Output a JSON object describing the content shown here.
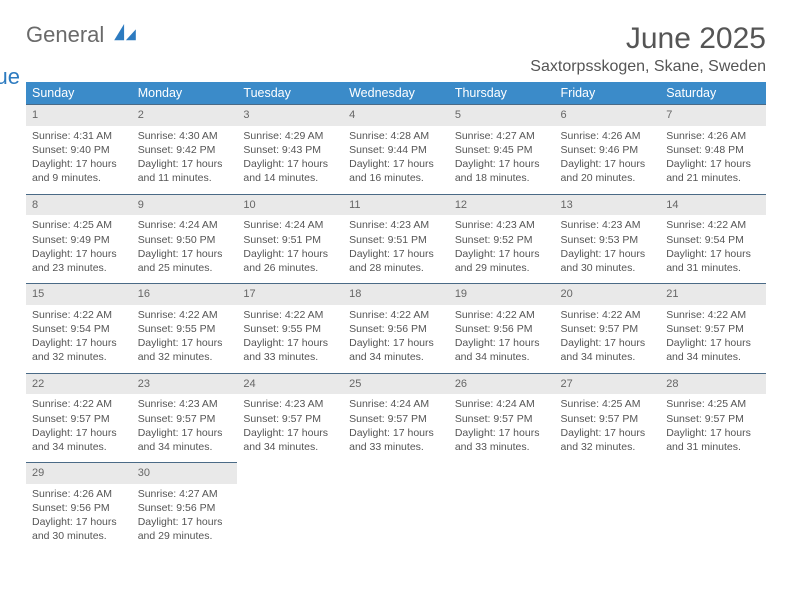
{
  "logo": {
    "text1": "General",
    "text2": "Blue"
  },
  "title": "June 2025",
  "location": "Saxtorpsskogen, Skane, Sweden",
  "colors": {
    "header_bg": "#3b8bc9",
    "header_text": "#ffffff",
    "daynum_bg": "#e9e9e9",
    "daynum_border": "#4a6a86",
    "body_text": "#555555",
    "logo_gray": "#6a6a6a",
    "logo_blue": "#2d7bc0",
    "page_bg": "#ffffff"
  },
  "fonts": {
    "body_size_pt": 10.5,
    "title_size_pt": 30,
    "location_size_pt": 16,
    "header_size_pt": 12.5
  },
  "weekdays": [
    "Sunday",
    "Monday",
    "Tuesday",
    "Wednesday",
    "Thursday",
    "Friday",
    "Saturday"
  ],
  "weeks": [
    [
      {
        "n": "1",
        "sr": "Sunrise: 4:31 AM",
        "ss": "Sunset: 9:40 PM",
        "d1": "Daylight: 17 hours",
        "d2": "and 9 minutes."
      },
      {
        "n": "2",
        "sr": "Sunrise: 4:30 AM",
        "ss": "Sunset: 9:42 PM",
        "d1": "Daylight: 17 hours",
        "d2": "and 11 minutes."
      },
      {
        "n": "3",
        "sr": "Sunrise: 4:29 AM",
        "ss": "Sunset: 9:43 PM",
        "d1": "Daylight: 17 hours",
        "d2": "and 14 minutes."
      },
      {
        "n": "4",
        "sr": "Sunrise: 4:28 AM",
        "ss": "Sunset: 9:44 PM",
        "d1": "Daylight: 17 hours",
        "d2": "and 16 minutes."
      },
      {
        "n": "5",
        "sr": "Sunrise: 4:27 AM",
        "ss": "Sunset: 9:45 PM",
        "d1": "Daylight: 17 hours",
        "d2": "and 18 minutes."
      },
      {
        "n": "6",
        "sr": "Sunrise: 4:26 AM",
        "ss": "Sunset: 9:46 PM",
        "d1": "Daylight: 17 hours",
        "d2": "and 20 minutes."
      },
      {
        "n": "7",
        "sr": "Sunrise: 4:26 AM",
        "ss": "Sunset: 9:48 PM",
        "d1": "Daylight: 17 hours",
        "d2": "and 21 minutes."
      }
    ],
    [
      {
        "n": "8",
        "sr": "Sunrise: 4:25 AM",
        "ss": "Sunset: 9:49 PM",
        "d1": "Daylight: 17 hours",
        "d2": "and 23 minutes."
      },
      {
        "n": "9",
        "sr": "Sunrise: 4:24 AM",
        "ss": "Sunset: 9:50 PM",
        "d1": "Daylight: 17 hours",
        "d2": "and 25 minutes."
      },
      {
        "n": "10",
        "sr": "Sunrise: 4:24 AM",
        "ss": "Sunset: 9:51 PM",
        "d1": "Daylight: 17 hours",
        "d2": "and 26 minutes."
      },
      {
        "n": "11",
        "sr": "Sunrise: 4:23 AM",
        "ss": "Sunset: 9:51 PM",
        "d1": "Daylight: 17 hours",
        "d2": "and 28 minutes."
      },
      {
        "n": "12",
        "sr": "Sunrise: 4:23 AM",
        "ss": "Sunset: 9:52 PM",
        "d1": "Daylight: 17 hours",
        "d2": "and 29 minutes."
      },
      {
        "n": "13",
        "sr": "Sunrise: 4:23 AM",
        "ss": "Sunset: 9:53 PM",
        "d1": "Daylight: 17 hours",
        "d2": "and 30 minutes."
      },
      {
        "n": "14",
        "sr": "Sunrise: 4:22 AM",
        "ss": "Sunset: 9:54 PM",
        "d1": "Daylight: 17 hours",
        "d2": "and 31 minutes."
      }
    ],
    [
      {
        "n": "15",
        "sr": "Sunrise: 4:22 AM",
        "ss": "Sunset: 9:54 PM",
        "d1": "Daylight: 17 hours",
        "d2": "and 32 minutes."
      },
      {
        "n": "16",
        "sr": "Sunrise: 4:22 AM",
        "ss": "Sunset: 9:55 PM",
        "d1": "Daylight: 17 hours",
        "d2": "and 32 minutes."
      },
      {
        "n": "17",
        "sr": "Sunrise: 4:22 AM",
        "ss": "Sunset: 9:55 PM",
        "d1": "Daylight: 17 hours",
        "d2": "and 33 minutes."
      },
      {
        "n": "18",
        "sr": "Sunrise: 4:22 AM",
        "ss": "Sunset: 9:56 PM",
        "d1": "Daylight: 17 hours",
        "d2": "and 34 minutes."
      },
      {
        "n": "19",
        "sr": "Sunrise: 4:22 AM",
        "ss": "Sunset: 9:56 PM",
        "d1": "Daylight: 17 hours",
        "d2": "and 34 minutes."
      },
      {
        "n": "20",
        "sr": "Sunrise: 4:22 AM",
        "ss": "Sunset: 9:57 PM",
        "d1": "Daylight: 17 hours",
        "d2": "and 34 minutes."
      },
      {
        "n": "21",
        "sr": "Sunrise: 4:22 AM",
        "ss": "Sunset: 9:57 PM",
        "d1": "Daylight: 17 hours",
        "d2": "and 34 minutes."
      }
    ],
    [
      {
        "n": "22",
        "sr": "Sunrise: 4:22 AM",
        "ss": "Sunset: 9:57 PM",
        "d1": "Daylight: 17 hours",
        "d2": "and 34 minutes."
      },
      {
        "n": "23",
        "sr": "Sunrise: 4:23 AM",
        "ss": "Sunset: 9:57 PM",
        "d1": "Daylight: 17 hours",
        "d2": "and 34 minutes."
      },
      {
        "n": "24",
        "sr": "Sunrise: 4:23 AM",
        "ss": "Sunset: 9:57 PM",
        "d1": "Daylight: 17 hours",
        "d2": "and 34 minutes."
      },
      {
        "n": "25",
        "sr": "Sunrise: 4:24 AM",
        "ss": "Sunset: 9:57 PM",
        "d1": "Daylight: 17 hours",
        "d2": "and 33 minutes."
      },
      {
        "n": "26",
        "sr": "Sunrise: 4:24 AM",
        "ss": "Sunset: 9:57 PM",
        "d1": "Daylight: 17 hours",
        "d2": "and 33 minutes."
      },
      {
        "n": "27",
        "sr": "Sunrise: 4:25 AM",
        "ss": "Sunset: 9:57 PM",
        "d1": "Daylight: 17 hours",
        "d2": "and 32 minutes."
      },
      {
        "n": "28",
        "sr": "Sunrise: 4:25 AM",
        "ss": "Sunset: 9:57 PM",
        "d1": "Daylight: 17 hours",
        "d2": "and 31 minutes."
      }
    ],
    [
      {
        "n": "29",
        "sr": "Sunrise: 4:26 AM",
        "ss": "Sunset: 9:56 PM",
        "d1": "Daylight: 17 hours",
        "d2": "and 30 minutes."
      },
      {
        "n": "30",
        "sr": "Sunrise: 4:27 AM",
        "ss": "Sunset: 9:56 PM",
        "d1": "Daylight: 17 hours",
        "d2": "and 29 minutes."
      },
      null,
      null,
      null,
      null,
      null
    ]
  ]
}
